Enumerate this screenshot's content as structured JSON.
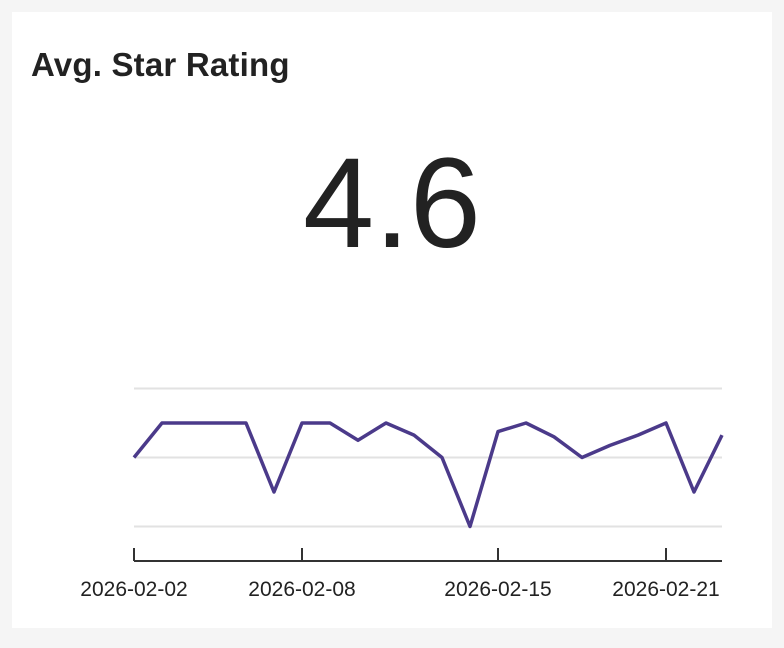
{
  "card": {
    "title": "Avg. Star Rating",
    "value": "4.6"
  },
  "colors": {
    "line": "#4b3a8a",
    "grid": "#e2e2e2",
    "axis": "#333333"
  },
  "chart_data": {
    "type": "line",
    "title": "",
    "xlabel": "",
    "ylabel": "",
    "grid": true,
    "x_tick_labels": [
      "2026-02-02",
      "2026-02-08",
      "2026-02-15",
      "2026-02-21"
    ],
    "ylim": [
      4.0,
      5.2
    ],
    "series": [
      {
        "values": [
          {
            "x": "2026-02-02",
            "y": 4.6
          },
          {
            "x": "2026-02-03",
            "y": 4.8
          },
          {
            "x": "2026-02-04",
            "y": 4.8
          },
          {
            "x": "2026-02-05",
            "y": 4.8
          },
          {
            "x": "2026-02-06",
            "y": 4.8
          },
          {
            "x": "2026-02-07",
            "y": 4.4
          },
          {
            "x": "2026-02-08",
            "y": 4.8
          },
          {
            "x": "2026-02-09",
            "y": 4.8
          },
          {
            "x": "2026-02-10",
            "y": 4.7
          },
          {
            "x": "2026-02-11",
            "y": 4.8
          },
          {
            "x": "2026-02-12",
            "y": 4.73
          },
          {
            "x": "2026-02-13",
            "y": 4.6
          },
          {
            "x": "2026-02-14",
            "y": 4.2
          },
          {
            "x": "2026-02-15",
            "y": 4.75
          },
          {
            "x": "2026-02-16",
            "y": 4.8
          },
          {
            "x": "2026-02-17",
            "y": 4.72
          },
          {
            "x": "2026-02-18",
            "y": 4.6
          },
          {
            "x": "2026-02-19",
            "y": 4.67
          },
          {
            "x": "2026-02-20",
            "y": 4.73
          },
          {
            "x": "2026-02-21",
            "y": 4.8
          },
          {
            "x": "2026-02-22",
            "y": 4.4
          },
          {
            "x": "2026-02-23",
            "y": 4.73
          }
        ]
      }
    ]
  }
}
